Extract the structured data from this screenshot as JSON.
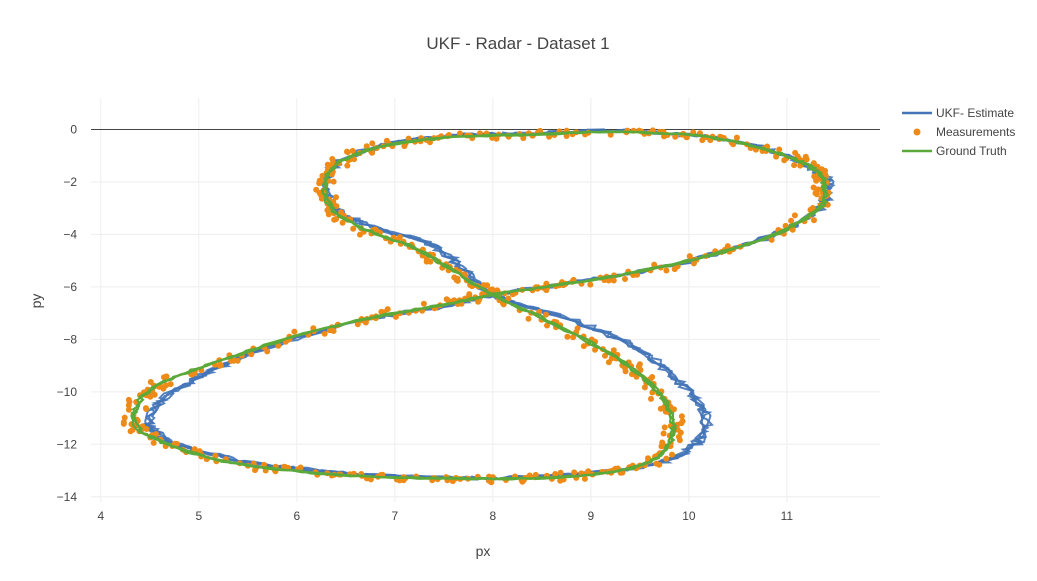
{
  "chart_data": {
    "type": "line",
    "title": "UKF - Radar - Dataset 1",
    "xlabel": "px",
    "ylabel": "py",
    "xlim": [
      3.9,
      11.95
    ],
    "ylim": [
      -14.2,
      1.2
    ],
    "x_ticks": [
      4,
      5,
      6,
      7,
      8,
      9,
      10,
      11
    ],
    "y_ticks": [
      0,
      -2,
      -4,
      -6,
      -8,
      -10,
      -12,
      -14
    ],
    "grid": true,
    "zero_line": true,
    "legend_position": "top-right",
    "series": [
      {
        "name": "UKF- Estimate",
        "mode": "lines",
        "color": "#4374b7"
      },
      {
        "name": "Measurements",
        "mode": "markers",
        "color": "#ee8a17"
      },
      {
        "name": "Ground Truth",
        "mode": "lines",
        "color": "#5ba93a"
      }
    ],
    "ground_truth": {
      "x": [
        8.0,
        8.62,
        9.13,
        9.52,
        9.76,
        9.84,
        9.75,
        9.47,
        9.01,
        8.37,
        7.63,
        6.85,
        6.06,
        5.34,
        4.75,
        4.36,
        4.4,
        4.66,
        5.16,
        5.88,
        6.72,
        7.48,
        8.0,
        8.62,
        9.37,
        10.16,
        10.84,
        11.33,
        11.38,
        11.29,
        11.02,
        10.58,
        9.96,
        9.2,
        8.37,
        7.55,
        6.87,
        6.42,
        6.28,
        6.38,
        6.69,
        7.18,
        7.6,
        8.0
      ],
      "y": [
        -6.3,
        -7.4,
        -8.4,
        -9.4,
        -10.4,
        -11.4,
        -12.25,
        -12.85,
        -13.15,
        -13.3,
        -13.3,
        -13.25,
        -13.05,
        -12.7,
        -12.1,
        -11.3,
        -10.3,
        -9.6,
        -8.9,
        -8.0,
        -7.2,
        -6.7,
        -6.3,
        -5.95,
        -5.5,
        -4.85,
        -4.05,
        -3.0,
        -2.1,
        -1.55,
        -1.05,
        -0.55,
        -0.2,
        -0.1,
        -0.2,
        -0.3,
        -0.65,
        -1.3,
        -2.2,
        -3.1,
        -3.8,
        -4.5,
        -5.4,
        -6.3
      ]
    },
    "ukf_estimate": {
      "x": [
        8.0,
        8.75,
        9.35,
        9.75,
        10.05,
        10.18,
        10.05,
        9.7,
        9.1,
        8.4,
        7.63,
        6.85,
        6.06,
        5.34,
        4.75,
        4.5,
        4.62,
        4.95,
        5.3,
        5.95,
        6.75,
        7.5,
        8.0,
        8.62,
        9.37,
        10.16,
        10.84,
        11.33,
        11.42,
        11.3,
        11.02,
        10.58,
        9.96,
        9.2,
        8.37,
        7.55,
        6.87,
        6.42,
        6.3,
        6.42,
        6.8,
        7.35,
        7.7,
        8.0
      ],
      "y": [
        -6.3,
        -7.2,
        -8.1,
        -9.1,
        -10.2,
        -11.2,
        -12.05,
        -12.7,
        -13.05,
        -13.25,
        -13.28,
        -13.2,
        -12.95,
        -12.55,
        -11.95,
        -11.25,
        -10.3,
        -9.55,
        -8.9,
        -8.0,
        -7.2,
        -6.75,
        -6.3,
        -5.95,
        -5.5,
        -4.85,
        -4.05,
        -3.0,
        -2.1,
        -1.55,
        -1.05,
        -0.55,
        -0.2,
        -0.05,
        -0.15,
        -0.25,
        -0.6,
        -1.3,
        -2.2,
        -3.1,
        -3.75,
        -4.35,
        -5.3,
        -6.3
      ]
    }
  },
  "legend": {
    "items": [
      "UKF- Estimate",
      "Measurements",
      "Ground Truth"
    ]
  }
}
